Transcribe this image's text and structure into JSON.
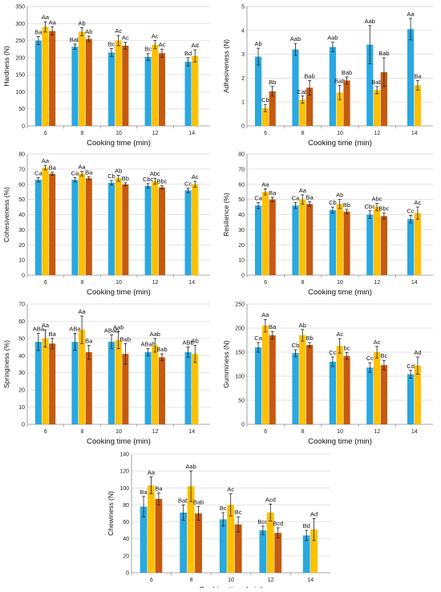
{
  "colors": {
    "blue": "#2AA8E0",
    "yellow": "#FFC000",
    "orange": "#C55A11",
    "axis": "#8c8c8c",
    "grid": "#d9d9d9"
  },
  "chart_data": [
    {
      "type": "bar",
      "ylabel": "Hardness (N)",
      "xlabel": "Cooking time (min)",
      "ylim": [
        0,
        350
      ],
      "yticks": [
        0,
        50,
        100,
        150,
        200,
        250,
        300,
        350
      ],
      "categories": [
        "6",
        "8",
        "10",
        "12",
        "14"
      ],
      "series": [
        {
          "values": [
            250,
            232,
            215,
            202,
            188
          ],
          "errors": [
            12,
            8,
            12,
            10,
            12
          ],
          "labels": [
            "Ba",
            "Bab",
            "Bc",
            "Bc",
            "Bd"
          ]
        },
        {
          "values": [
            290,
            276,
            250,
            238,
            205
          ],
          "errors": [
            15,
            12,
            15,
            12,
            18
          ],
          "labels": [
            "Aa",
            "Ab",
            "Ac",
            "Ac",
            "Ad"
          ]
        },
        {
          "values": [
            278,
            255,
            235,
            213,
            null
          ],
          "errors": [
            12,
            8,
            10,
            12,
            null
          ],
          "labels": [
            "Aa",
            "Ab",
            "Ac",
            "Ac",
            null
          ]
        }
      ]
    },
    {
      "type": "bar",
      "ylabel": "Adhesiveness (N)",
      "xlabel": "Cooking time (min)",
      "ylim": [
        0,
        5
      ],
      "yticks": [
        0,
        1,
        2,
        3,
        4,
        5
      ],
      "categories": [
        "6",
        "8",
        "10",
        "12",
        "14"
      ],
      "series": [
        {
          "values": [
            2.9,
            3.2,
            3.3,
            3.4,
            4.05
          ],
          "errors": [
            0.35,
            0.25,
            0.2,
            0.8,
            0.45
          ],
          "labels": [
            "Ab",
            "Aab",
            "Aab",
            "Aab",
            "Aa"
          ]
        },
        {
          "values": [
            0.75,
            1.1,
            1.4,
            1.5,
            1.7
          ],
          "errors": [
            0.15,
            0.15,
            0.3,
            0.15,
            0.2
          ],
          "labels": [
            "Cb",
            "Cab",
            "Bab",
            "Bab",
            "Ba"
          ]
        },
        {
          "values": [
            1.45,
            1.6,
            1.9,
            2.25,
            null
          ],
          "errors": [
            0.2,
            0.3,
            0.15,
            0.6,
            null
          ],
          "labels": [
            "Bb",
            "Bab",
            "Bab",
            "Bab",
            null
          ]
        }
      ]
    },
    {
      "type": "bar",
      "ylabel": "Cohesiveness (%)",
      "xlabel": "Cooking time (min)",
      "ylim": [
        0,
        80
      ],
      "yticks": [
        0,
        10,
        20,
        30,
        40,
        50,
        60,
        70,
        80
      ],
      "categories": [
        "6",
        "8",
        "10",
        "12",
        "14"
      ],
      "series": [
        {
          "values": [
            63,
            63,
            61,
            59,
            56
          ],
          "errors": [
            1.5,
            1.5,
            1.5,
            1.5,
            1.5
          ],
          "labels": [
            "Ca",
            "Ca",
            "Cb",
            "Cbc",
            "Cc"
          ]
        },
        {
          "values": [
            71,
            67,
            64,
            62,
            60
          ],
          "errors": [
            1.5,
            1.5,
            2,
            2,
            2
          ],
          "labels": [
            "Aa",
            "Aa",
            "Ab",
            "Abc",
            "Ac"
          ]
        },
        {
          "values": [
            67,
            64,
            60,
            58,
            null
          ],
          "errors": [
            1,
            1,
            1,
            1,
            null
          ],
          "labels": [
            "Ba",
            "Ba",
            "Bb",
            "Bbc",
            null
          ]
        }
      ]
    },
    {
      "type": "bar",
      "ylabel": "Resilience (%)",
      "xlabel": "Cooking time (min)",
      "ylim": [
        0,
        80
      ],
      "yticks": [
        0,
        10,
        20,
        30,
        40,
        50,
        60,
        70,
        80
      ],
      "categories": [
        "6",
        "8",
        "10",
        "12",
        "14"
      ],
      "series": [
        {
          "values": [
            46,
            46,
            43,
            40,
            37
          ],
          "errors": [
            2,
            2,
            2,
            2.5,
            2.5
          ],
          "labels": [
            "Ca",
            "Ca",
            "Cb",
            "Cbc",
            "Cc"
          ]
        },
        {
          "values": [
            55,
            50,
            47,
            45,
            41
          ],
          "errors": [
            2,
            3,
            3,
            2.5,
            4
          ],
          "labels": [
            "Aa",
            "Aa",
            "Ab",
            "Abc",
            "Ac"
          ]
        },
        {
          "values": [
            50,
            47,
            42,
            39,
            null
          ],
          "errors": [
            1.5,
            1.5,
            1.5,
            2,
            null
          ],
          "labels": [
            "Ba",
            "Ba",
            "Bb",
            "Bbc",
            null
          ]
        }
      ]
    },
    {
      "type": "bar",
      "ylabel": "Springiness (%)",
      "xlabel": "Cooking time (min)",
      "ylim": [
        0,
        70
      ],
      "yticks": [
        0,
        10,
        20,
        30,
        40,
        50,
        60,
        70
      ],
      "categories": [
        "6",
        "8",
        "10",
        "12",
        "14"
      ],
      "series": [
        {
          "values": [
            48,
            48,
            48,
            42,
            42
          ],
          "errors": [
            5,
            5,
            4,
            2,
            3
          ],
          "labels": [
            "ABa",
            "ABa",
            "ABab",
            "ABab",
            "ABb"
          ]
        },
        {
          "values": [
            50,
            55,
            49,
            46,
            41
          ],
          "errors": [
            5,
            8,
            5,
            4,
            5
          ],
          "labels": [
            "Aa",
            "Aa",
            "Aab",
            "Aab",
            "Ab"
          ]
        },
        {
          "values": [
            47,
            42,
            41,
            39,
            null
          ],
          "errors": [
            3,
            4,
            6,
            2,
            null
          ],
          "labels": [
            "Ba",
            "Ba",
            "Bab",
            "Bab",
            null
          ]
        }
      ]
    },
    {
      "type": "bar",
      "ylabel": "Gumminess (N)",
      "xlabel": "Cooking time (min)",
      "ylim": [
        0,
        250
      ],
      "yticks": [
        0,
        50,
        100,
        150,
        200,
        250
      ],
      "categories": [
        "6",
        "8",
        "10",
        "12",
        "14"
      ],
      "series": [
        {
          "values": [
            160,
            148,
            130,
            118,
            104
          ],
          "errors": [
            10,
            7,
            10,
            10,
            8
          ],
          "labels": [
            "Ca",
            "Cb",
            "Cc",
            "Cc",
            "Cd"
          ]
        },
        {
          "values": [
            205,
            185,
            163,
            150,
            122
          ],
          "errors": [
            13,
            12,
            15,
            12,
            18
          ],
          "labels": [
            "Aa",
            "Ab",
            "Ac",
            "Ac",
            "Ad"
          ]
        },
        {
          "values": [
            185,
            165,
            142,
            123,
            null
          ],
          "errors": [
            8,
            5,
            7,
            10,
            null
          ],
          "labels": [
            "Ba",
            "Bb",
            "bc",
            "Bc",
            null
          ]
        }
      ]
    },
    {
      "type": "bar",
      "ylabel": "Chewiness (N)",
      "xlabel": "Cooking time (min)",
      "ylim": [
        0,
        140
      ],
      "yticks": [
        0,
        20,
        40,
        60,
        80,
        100,
        120,
        140
      ],
      "categories": [
        "6",
        "8",
        "10",
        "12",
        "14"
      ],
      "series": [
        {
          "values": [
            78,
            71,
            63,
            50,
            44
          ],
          "errors": [
            12,
            9,
            8,
            5,
            6
          ],
          "labels": [
            "Ba",
            "Bab",
            "Bc",
            "Bcd",
            "Bd"
          ]
        },
        {
          "values": [
            103,
            102,
            80,
            71,
            51
          ],
          "errors": [
            10,
            18,
            13,
            10,
            13
          ],
          "labels": [
            "Aa",
            "Aab",
            "Ac",
            "Acd",
            "Ad"
          ]
        },
        {
          "values": [
            87,
            70,
            57,
            47,
            null
          ],
          "errors": [
            7,
            8,
            9,
            6,
            null
          ],
          "labels": [
            "Ba",
            "Bab",
            "Bc",
            "Bcd",
            null
          ]
        }
      ]
    }
  ]
}
